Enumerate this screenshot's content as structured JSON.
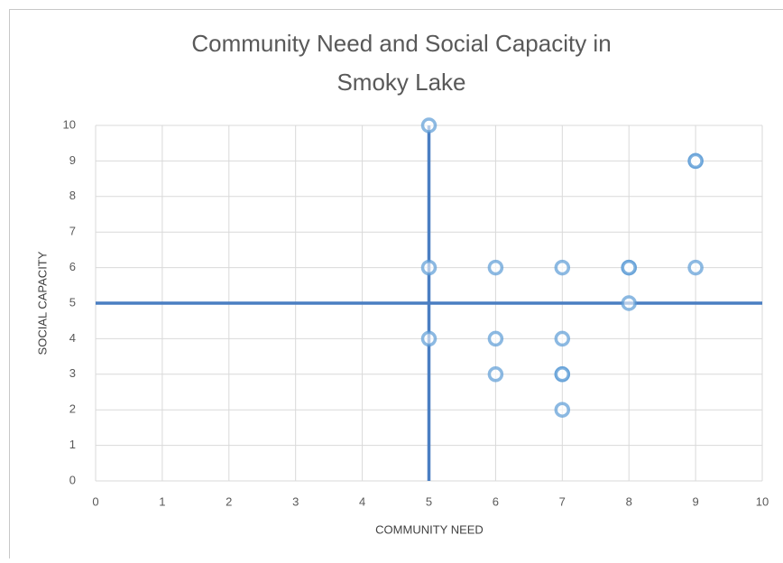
{
  "chart_data": {
    "type": "scatter",
    "title": [
      "Community Need and Social Capacity in",
      "Smoky Lake"
    ],
    "xlabel": "COMMUNITY NEED",
    "ylabel": "SOCIAL CAPACITY",
    "series": [
      {
        "color": "#5b9bd5",
        "x": [
          5,
          9,
          9,
          5,
          6,
          7,
          8,
          8,
          9,
          8,
          5,
          6,
          7,
          6,
          7,
          7,
          7
        ],
        "values": [
          10,
          9,
          9,
          6,
          6,
          6,
          6,
          6,
          6,
          5,
          4,
          4,
          4,
          3,
          3,
          3,
          2
        ]
      }
    ],
    "reference_lines": {
      "x": 5,
      "y": 5,
      "color": "#4a7ec2"
    },
    "xlim": [
      0,
      10
    ],
    "xticks": [
      0,
      1,
      2,
      3,
      4,
      5,
      6,
      7,
      8,
      9,
      10
    ],
    "ylim": [
      0,
      10
    ],
    "yticks": [
      0,
      1,
      2,
      3,
      4,
      5,
      6,
      7,
      8,
      9,
      10
    ],
    "grid": true
  }
}
